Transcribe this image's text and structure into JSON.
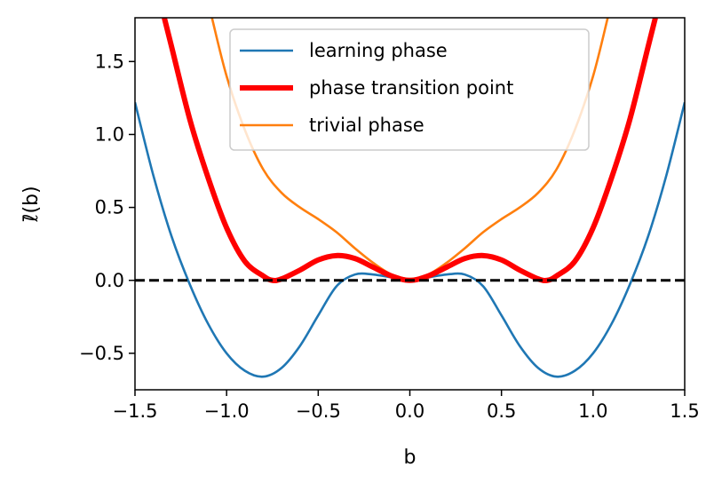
{
  "chart_data": {
    "type": "line",
    "xlabel": "b",
    "ylabel": "ℓ̄(b)",
    "xlim": [
      -1.5,
      1.5
    ],
    "ylim": [
      -0.75,
      1.8
    ],
    "x_ticks": [
      -1.5,
      -1.0,
      -0.5,
      0.0,
      0.5,
      1.0,
      1.5
    ],
    "x_tick_labels": [
      "−1.5",
      "−1.0",
      "−0.5",
      "0.0",
      "0.5",
      "1.0",
      "1.5"
    ],
    "y_ticks": [
      -0.5,
      0.0,
      0.5,
      1.0,
      1.5
    ],
    "y_tick_labels": [
      "−0.5",
      "0.0",
      "0.5",
      "1.0",
      "1.5"
    ],
    "grid": false,
    "legend_placement": "upper center",
    "reference_line": {
      "y": 0,
      "style": "dashed",
      "color": "#000000"
    },
    "series": [
      {
        "name": "learning phase",
        "color": "#1f77b4",
        "line_width": "normal",
        "x": [
          -1.5,
          -1.4,
          -1.3,
          -1.2,
          -1.1,
          -1.0,
          -0.9,
          -0.8,
          -0.7,
          -0.6,
          -0.5,
          -0.4,
          -0.3,
          -0.2,
          -0.1,
          0.0,
          0.1,
          0.2,
          0.3,
          0.4,
          0.5,
          0.6,
          0.7,
          0.8,
          0.9,
          1.0,
          1.1,
          1.2,
          1.3,
          1.4,
          1.5
        ],
        "y": [
          1.22,
          0.72,
          0.3,
          -0.03,
          -0.3,
          -0.5,
          -0.62,
          -0.66,
          -0.6,
          -0.45,
          -0.24,
          -0.04,
          0.04,
          0.04,
          0.02,
          0.0,
          0.02,
          0.04,
          0.04,
          -0.04,
          -0.24,
          -0.45,
          -0.6,
          -0.66,
          -0.62,
          -0.5,
          -0.3,
          -0.03,
          0.3,
          0.72,
          1.22
        ]
      },
      {
        "name": "phase transition point",
        "color": "#ff0000",
        "line_width": "thick",
        "x": [
          -1.34,
          -1.3,
          -1.2,
          -1.1,
          -1.0,
          -0.9,
          -0.8,
          -0.75,
          -0.7,
          -0.6,
          -0.5,
          -0.4,
          -0.3,
          -0.2,
          -0.1,
          0.0,
          0.1,
          0.2,
          0.3,
          0.4,
          0.5,
          0.6,
          0.7,
          0.75,
          0.8,
          0.9,
          1.0,
          1.1,
          1.2,
          1.3,
          1.34
        ],
        "y": [
          1.8,
          1.6,
          1.1,
          0.7,
          0.36,
          0.13,
          0.03,
          0.0,
          0.01,
          0.07,
          0.14,
          0.17,
          0.15,
          0.09,
          0.03,
          0.0,
          0.03,
          0.09,
          0.15,
          0.17,
          0.14,
          0.07,
          0.01,
          0.0,
          0.03,
          0.13,
          0.36,
          0.7,
          1.1,
          1.6,
          1.8
        ]
      },
      {
        "name": "trivial phase",
        "color": "#ff7f0e",
        "line_width": "normal",
        "x": [
          -1.08,
          -1.0,
          -0.9,
          -0.8,
          -0.7,
          -0.6,
          -0.5,
          -0.4,
          -0.3,
          -0.2,
          -0.1,
          0.0,
          0.1,
          0.2,
          0.3,
          0.4,
          0.5,
          0.6,
          0.7,
          0.8,
          0.9,
          1.0,
          1.08
        ],
        "y": [
          1.8,
          1.4,
          1.03,
          0.76,
          0.6,
          0.5,
          0.42,
          0.33,
          0.22,
          0.12,
          0.04,
          0.01,
          0.04,
          0.12,
          0.22,
          0.33,
          0.42,
          0.5,
          0.6,
          0.76,
          1.03,
          1.4,
          1.8
        ]
      }
    ]
  }
}
